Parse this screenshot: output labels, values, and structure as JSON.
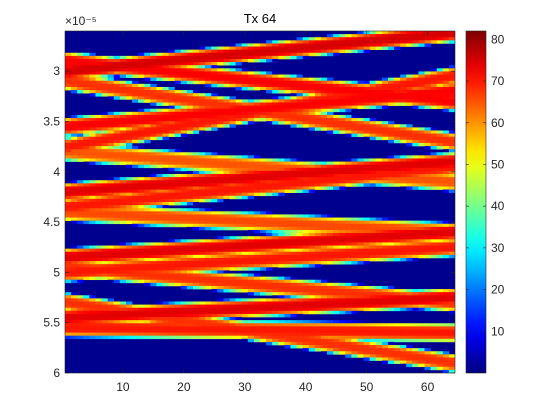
{
  "chart_data": {
    "type": "heatmap",
    "title": "Tx 64",
    "xlabel": "",
    "ylabel": "",
    "colormap": "jet",
    "x_range": [
      1,
      64
    ],
    "x_ticks": [
      10,
      20,
      30,
      40,
      50,
      60
    ],
    "x_tick_labels": [
      "10",
      "20",
      "30",
      "40",
      "50",
      "60"
    ],
    "y_range": [
      2.6e-05,
      6e-05
    ],
    "y_reversed": true,
    "y_ticks": [
      3e-05,
      3.5e-05,
      4e-05,
      4.5e-05,
      5e-05,
      5.5e-05,
      6e-05
    ],
    "y_tick_labels": [
      "3",
      "3.5",
      "4",
      "4.5",
      "5",
      "5.5",
      "6"
    ],
    "y_exponent_label": "×10⁻⁵",
    "color_range": [
      0,
      82
    ],
    "colorbar_ticks": [
      10,
      20,
      30,
      40,
      50,
      60,
      70,
      80
    ],
    "colorbar_tick_labels": [
      "10",
      "20",
      "30",
      "40",
      "50",
      "60",
      "70",
      "80"
    ],
    "background_value": 0,
    "band_halfwidth": 1e-06,
    "bands": [
      {
        "y_at_x1": 3e-05,
        "y_at_x64": 2.62e-05,
        "peak": 75
      },
      {
        "y_at_x1": 2.9e-05,
        "y_at_x64": 3.3e-05,
        "peak": 72
      },
      {
        "y_at_x1": 3.1e-05,
        "y_at_x64": 3.7e-05,
        "peak": 68
      },
      {
        "y_at_x1": 3.55e-05,
        "y_at_x64": 3.2e-05,
        "peak": 72
      },
      {
        "y_at_x1": 3.75e-05,
        "y_at_x64": 3.05e-05,
        "peak": 70
      },
      {
        "y_at_x1": 3.8e-05,
        "y_at_x64": 4.1e-05,
        "peak": 65
      },
      {
        "y_at_x1": 4.2e-05,
        "y_at_x64": 3.9e-05,
        "peak": 74
      },
      {
        "y_at_x1": 4.35e-05,
        "y_at_x64": 3.95e-05,
        "peak": 70
      },
      {
        "y_at_x1": 4.4e-05,
        "y_at_x64": 4.6e-05,
        "peak": 66
      },
      {
        "y_at_x1": 4.85e-05,
        "y_at_x64": 4.6e-05,
        "peak": 74
      },
      {
        "y_at_x1": 5e-05,
        "y_at_x64": 4.75e-05,
        "peak": 70
      },
      {
        "y_at_x1": 4.95e-05,
        "y_at_x64": 5.3e-05,
        "peak": 68
      },
      {
        "y_at_x1": 5.45e-05,
        "y_at_x64": 5.25e-05,
        "peak": 74
      },
      {
        "y_at_x1": 5.55e-05,
        "y_at_x64": 5.6e-05,
        "peak": 70
      },
      {
        "y_at_x1": 5.3e-05,
        "y_at_x64": 5.9e-05,
        "peak": 68
      }
    ]
  }
}
